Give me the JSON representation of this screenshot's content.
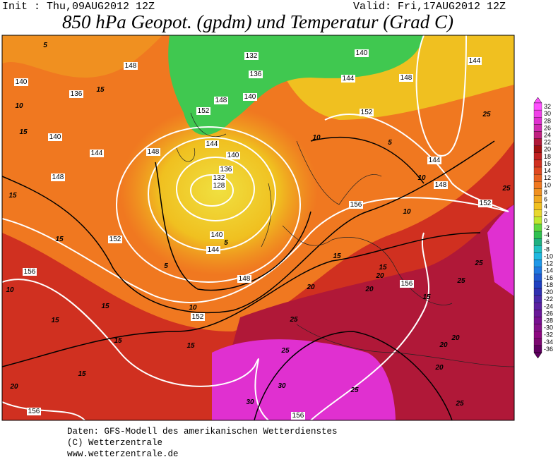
{
  "header": {
    "init": "Init : Thu,09AUG2012 12Z",
    "valid": "Valid: Fri,17AUG2012 12Z",
    "title": "850 hPa Geopot. (gpdm) und Temperatur (Grad C)"
  },
  "colorbar": {
    "labels": [
      32,
      30,
      28,
      26,
      24,
      22,
      20,
      18,
      16,
      14,
      12,
      10,
      8,
      6,
      4,
      2,
      0,
      -2,
      -4,
      -6,
      -8,
      -10,
      -12,
      -14,
      -16,
      -18,
      -20,
      -22,
      -24,
      -26,
      -28,
      -30,
      -32,
      -34,
      -36
    ],
    "colors": [
      "#ff50ff",
      "#f040e8",
      "#e030d0",
      "#d02ab0",
      "#c02080",
      "#b01838",
      "#a01010",
      "#c02020",
      "#d03020",
      "#e04820",
      "#e86020",
      "#f07820",
      "#f09020",
      "#f0a820",
      "#f0c020",
      "#e8d830",
      "#c0e830",
      "#60d840",
      "#30c050",
      "#20b080",
      "#20c0c0",
      "#20b8e0",
      "#2098e8",
      "#2078e0",
      "#2058d0",
      "#2040c0",
      "#3030b0",
      "#4828a8",
      "#5a20a0",
      "#6a1898",
      "#781090",
      "#841088",
      "#8c0880",
      "#7c0870",
      "#600060"
    ]
  },
  "map": {
    "geopotential_labels": [
      "148",
      "140",
      "136",
      "140",
      "144",
      "148",
      "148",
      "152",
      "156",
      "152",
      "156",
      "156",
      "148",
      "144",
      "140",
      "136",
      "132",
      "128",
      "140",
      "144",
      "152",
      "148",
      "140",
      "136",
      "132",
      "140",
      "144",
      "148",
      "152",
      "144",
      "148",
      "156",
      "152",
      "156",
      "144"
    ],
    "temperature_labels": [
      "5",
      "15",
      "10",
      "15",
      "15",
      "15",
      "10",
      "15",
      "15",
      "15",
      "15",
      "20",
      "10",
      "5",
      "5",
      "15",
      "20",
      "25",
      "25",
      "30",
      "30",
      "25",
      "20",
      "20",
      "15",
      "15",
      "15",
      "20",
      "20",
      "25",
      "20",
      "25",
      "25",
      "10",
      "5",
      "10",
      "10",
      "25",
      "25"
    ]
  },
  "footer": {
    "lines": [
      "Daten: GFS-Modell des amerikanischen Wetterdienstes",
      "(C) Wetterzentrale",
      "www.wetterzentrale.de"
    ]
  }
}
